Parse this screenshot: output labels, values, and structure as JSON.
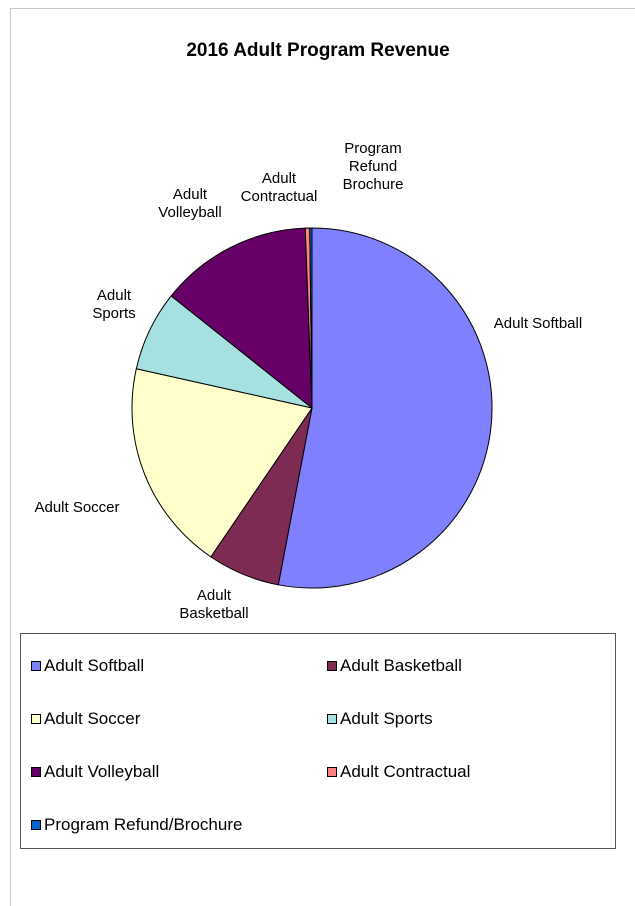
{
  "chart_data": {
    "type": "pie",
    "title": "2016 Adult Program Revenue",
    "slices": [
      {
        "label": "Adult Softball",
        "slice_label": [
          "Adult Softball"
        ],
        "value": 53.0,
        "color": "#8080ff"
      },
      {
        "label": "Adult Basketball",
        "slice_label": [
          "Adult",
          "Basketball"
        ],
        "value": 6.5,
        "color": "#7e2b54"
      },
      {
        "label": "Adult Soccer",
        "slice_label": [
          "Adult Soccer"
        ],
        "value": 19.0,
        "color": "#ffffcc"
      },
      {
        "label": "Adult Sports",
        "slice_label": [
          "Adult",
          "Sports"
        ],
        "value": 7.2,
        "color": "#a6e0e0"
      },
      {
        "label": "Adult Volleyball",
        "slice_label": [
          "Adult",
          "Volleyball"
        ],
        "value": 13.7,
        "color": "#660066"
      },
      {
        "label": "Adult Contractual",
        "slice_label": [
          "Adult",
          "Contractual"
        ],
        "value": 0.4,
        "color": "#ff8080"
      },
      {
        "label": "Program Refund/Brochure",
        "slice_label": [
          "Program",
          "Refund",
          "Brochure"
        ],
        "value": 0.2,
        "color": "#0066cc"
      }
    ],
    "legend_position": "bottom"
  }
}
